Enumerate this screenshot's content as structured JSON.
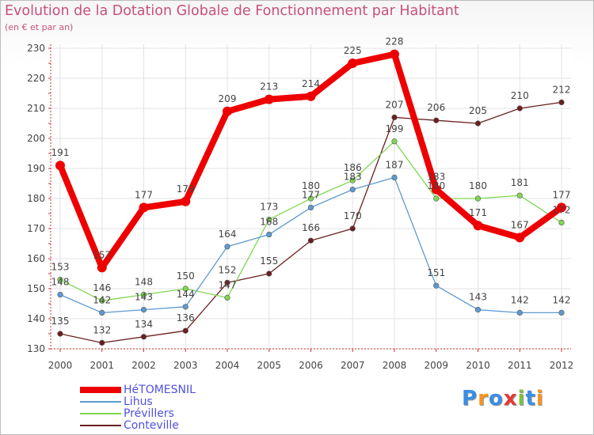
{
  "header": {
    "title": "Evolution de la Dotation Globale de Fonctionnement par Habitant",
    "subtitle": "(en € et par an)"
  },
  "chart_data": {
    "type": "line",
    "title": "Evolution de la Dotation Globale de Fonctionnement par Habitant",
    "subtitle": "(en € et par an)",
    "xlabel": "",
    "ylabel": "",
    "categories": [
      "2000",
      "2001",
      "2002",
      "2003",
      "2004",
      "2005",
      "2006",
      "2007",
      "2008",
      "2009",
      "2010",
      "2011",
      "2012"
    ],
    "yticks": [
      130,
      140,
      150,
      160,
      170,
      180,
      190,
      200,
      210,
      220,
      230
    ],
    "ylim": [
      130,
      230
    ],
    "grid": true,
    "series": [
      {
        "name": "HéTOMESNIL",
        "color": "#ee0000",
        "values": [
          191,
          157,
          177,
          179,
          209,
          213,
          214,
          225,
          228,
          183,
          171,
          167,
          177
        ]
      },
      {
        "name": "Lihus",
        "color": "#5d9ad0",
        "values": [
          148,
          142,
          143,
          144,
          164,
          168,
          177,
          183,
          187,
          151,
          143,
          142,
          142
        ]
      },
      {
        "name": "Prévillers",
        "color": "#7fd653",
        "values": [
          153,
          146,
          148,
          150,
          147,
          173,
          180,
          186,
          199,
          180,
          180,
          181,
          172
        ]
      },
      {
        "name": "Conteville",
        "color": "#6b1f1f",
        "values": [
          135,
          132,
          134,
          136,
          152,
          155,
          166,
          170,
          207,
          206,
          205,
          210,
          212
        ]
      }
    ]
  },
  "legend": {
    "label_color": "#5050e0",
    "items": [
      {
        "label": "HéTOMESNIL",
        "color": "#ee0000"
      },
      {
        "label": "Lihus",
        "color": "#5d9ad0"
      },
      {
        "label": "Prévillers",
        "color": "#7fd653"
      },
      {
        "label": "Conteville",
        "color": "#6b1f1f"
      }
    ]
  },
  "logo": {
    "letters": [
      "P",
      "r",
      "o",
      "x",
      "i",
      "t",
      "i"
    ],
    "colors": [
      "#3a8ee6",
      "#f7931e",
      "#3a8ee6",
      "#e53935",
      "#7cc142",
      "#3a8ee6",
      "#f7931e"
    ]
  }
}
